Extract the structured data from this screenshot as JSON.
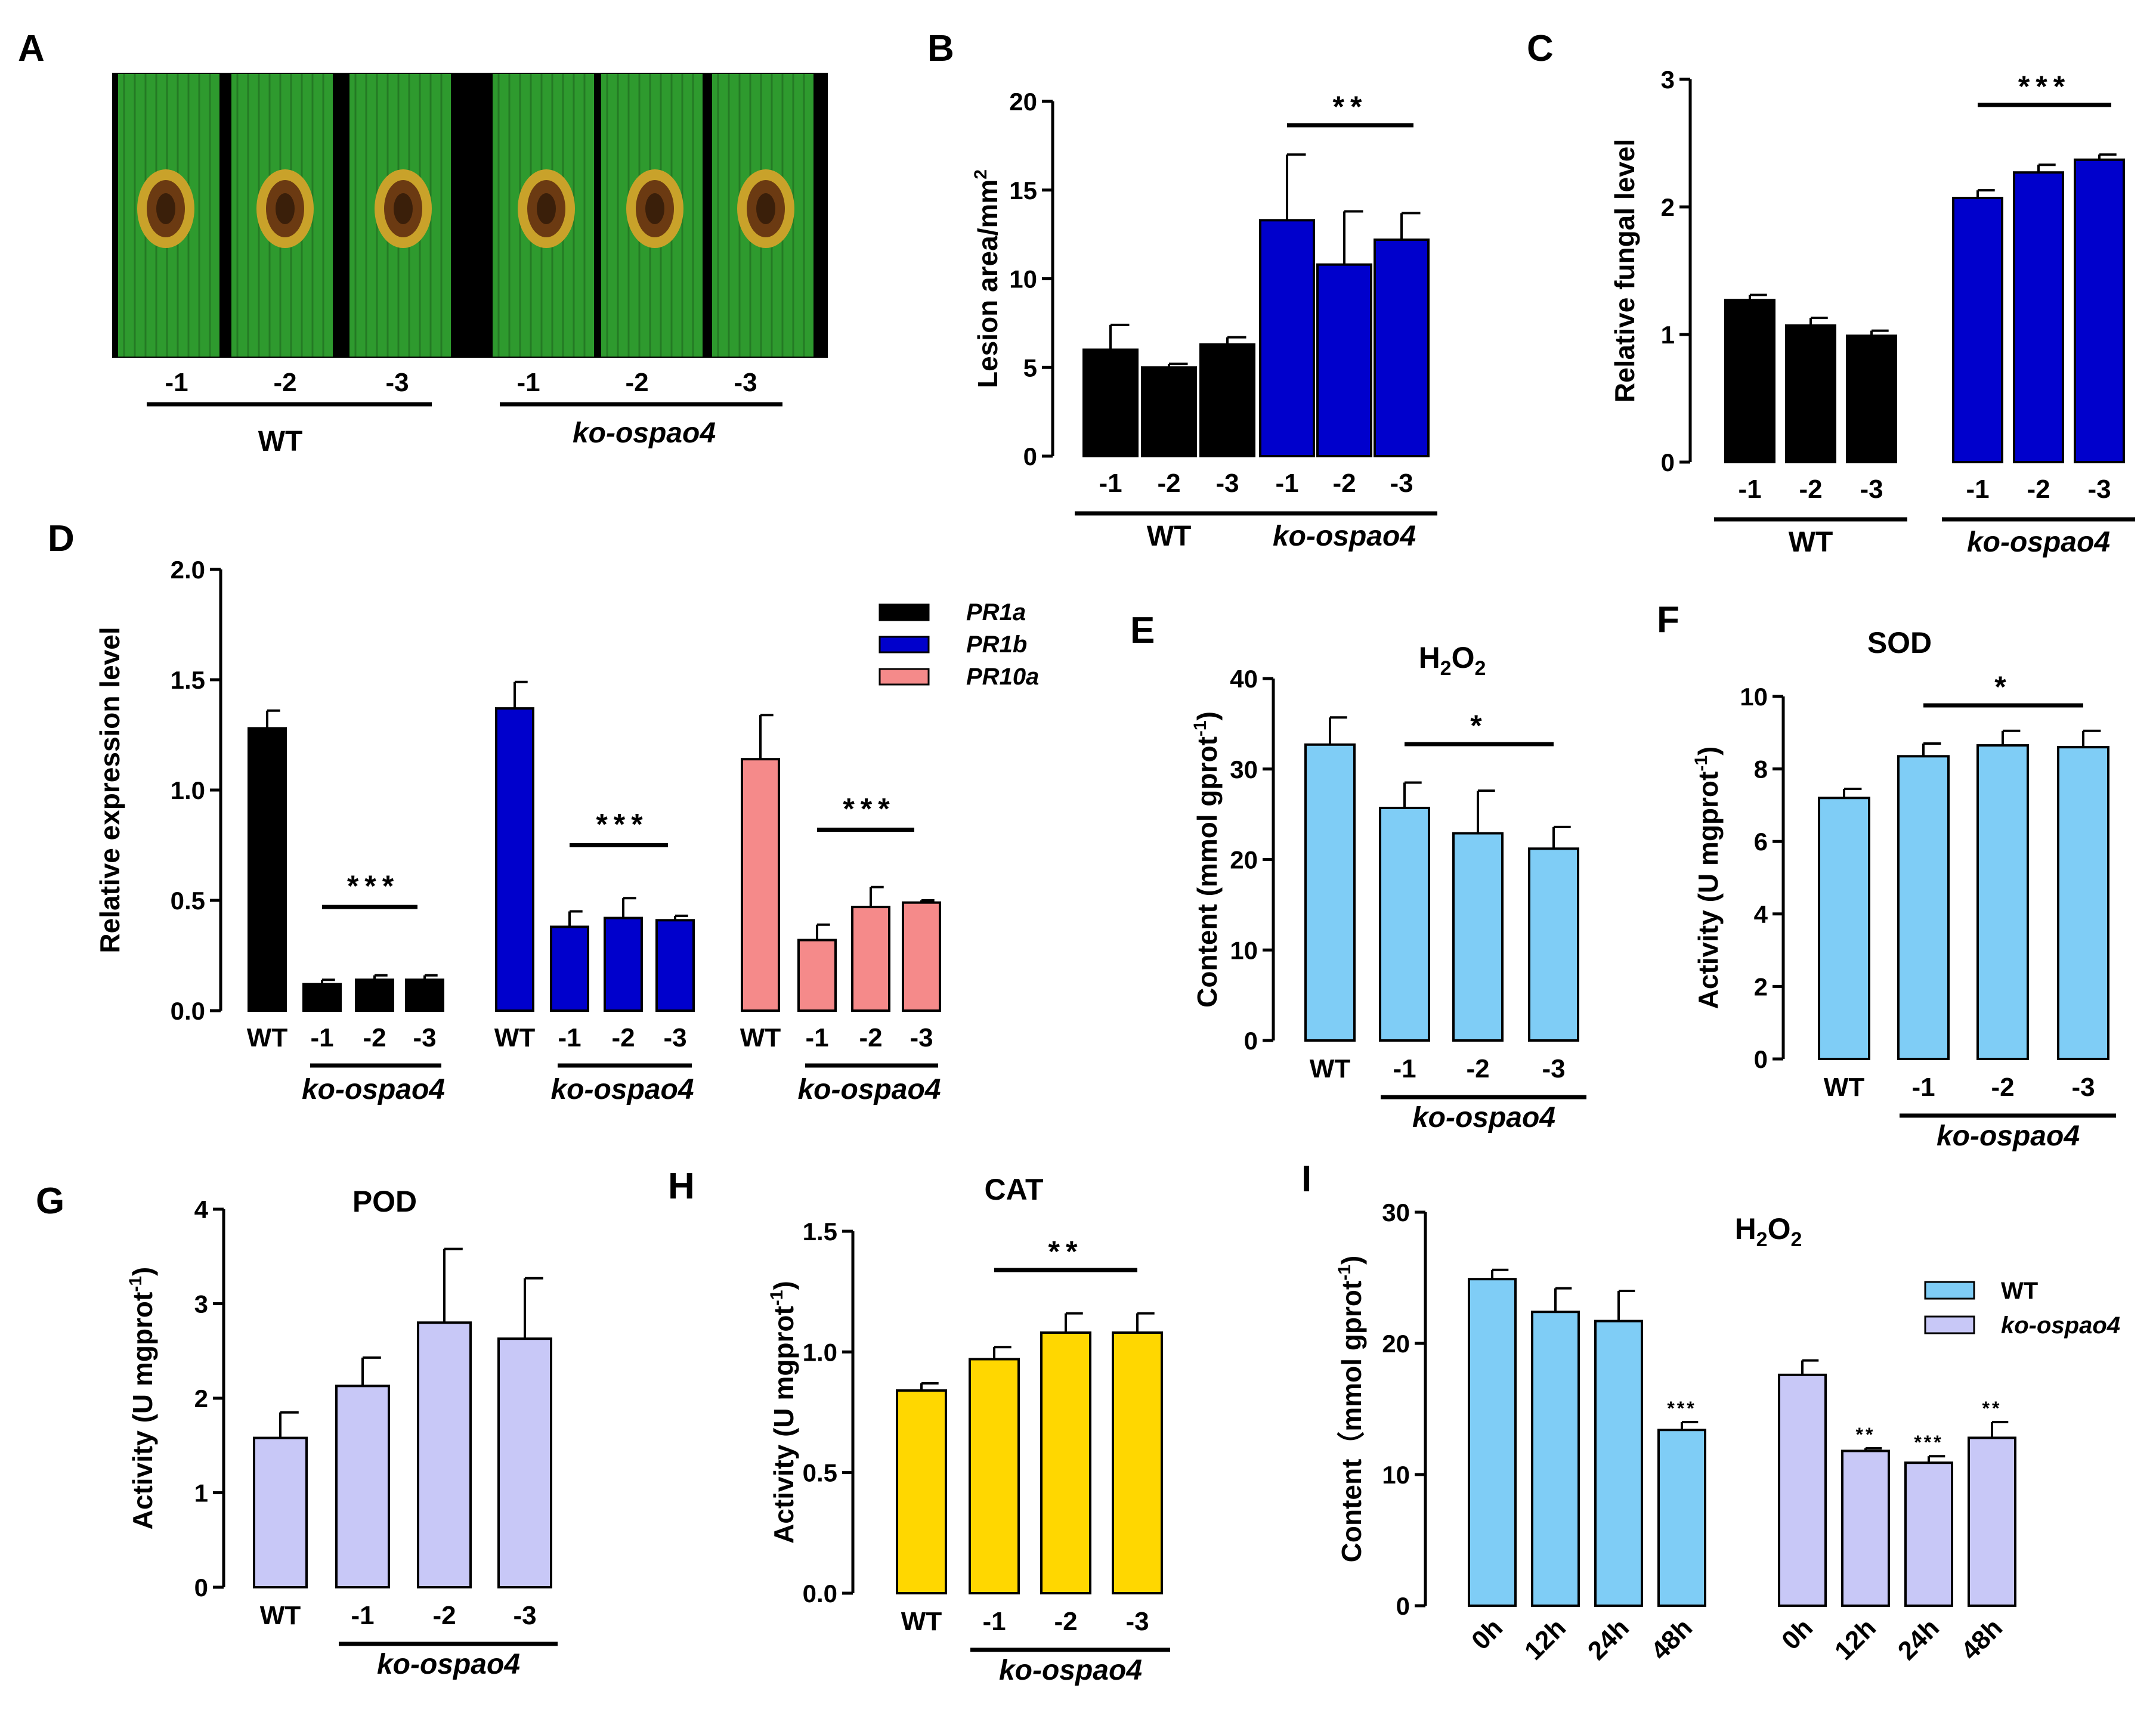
{
  "colors": {
    "black": "#000000",
    "blue": "#0000CC",
    "salmon": "#F58A8A",
    "lightblue": "#7FCDF6",
    "lavender": "#C8C8F7",
    "gold": "#FFD700",
    "leaf": "#2E9A2E"
  },
  "photo": {
    "label": "A",
    "strain_labels": [
      "-1",
      "-2",
      "-3",
      "-1",
      "-2",
      "-3"
    ],
    "groups": [
      "WT",
      "ko-ospao4"
    ]
  },
  "chart_data": [
    {
      "id": "B",
      "label": "B",
      "type": "bar",
      "title": "",
      "ylabel": "Lesion area/mm",
      "ylabel_sup": "2",
      "ylim": [
        0,
        20
      ],
      "yticks": [
        "0",
        "5",
        "10",
        "15",
        "20"
      ],
      "categories": [
        "-1",
        "-2",
        "-3",
        "-1",
        "-2",
        "-3"
      ],
      "values": [
        6.0,
        5.0,
        6.3,
        13.3,
        10.8,
        12.2
      ],
      "errors": [
        1.4,
        0.2,
        0.4,
        3.7,
        3.0,
        1.5
      ],
      "bar_colors": [
        "black",
        "black",
        "black",
        "blue",
        "blue",
        "blue"
      ],
      "groups": [
        {
          "name": "WT",
          "italic": false
        },
        {
          "name": "ko-ospao4",
          "italic": true
        }
      ],
      "significance": "**"
    },
    {
      "id": "C",
      "label": "C",
      "type": "bar",
      "title": "",
      "ylabel": "Relative fungal level",
      "ylim": [
        0,
        3
      ],
      "yticks": [
        "0",
        "1",
        "2",
        "3"
      ],
      "categories": [
        "-1",
        "-2",
        "-3",
        "-1",
        "-2",
        "-3"
      ],
      "values": [
        1.27,
        1.07,
        0.99,
        2.07,
        2.27,
        2.37
      ],
      "errors": [
        0.04,
        0.06,
        0.04,
        0.06,
        0.06,
        0.04
      ],
      "bar_colors": [
        "black",
        "black",
        "black",
        "blue",
        "blue",
        "blue"
      ],
      "groups": [
        {
          "name": "WT",
          "italic": false
        },
        {
          "name": "ko-ospao4",
          "italic": true
        }
      ],
      "significance": "***"
    },
    {
      "id": "D",
      "label": "D",
      "type": "bar",
      "title": "",
      "ylabel": "Relative expression level",
      "ylim": [
        0,
        2
      ],
      "yticks": [
        "0.0",
        "0.5",
        "1.0",
        "1.5",
        "2.0"
      ],
      "categories": [
        "WT",
        "-1",
        "-2",
        "-3"
      ],
      "series": [
        {
          "name": "PR1a",
          "values": [
            1.28,
            0.12,
            0.14,
            0.14
          ],
          "errors": [
            0.08,
            0.02,
            0.02,
            0.02
          ],
          "significance": "***"
        },
        {
          "name": "PR1b",
          "values": [
            1.37,
            0.38,
            0.42,
            0.41
          ],
          "errors": [
            0.12,
            0.07,
            0.09,
            0.02
          ],
          "significance": "***"
        },
        {
          "name": "PR10a",
          "values": [
            1.14,
            0.32,
            0.47,
            0.49
          ],
          "errors": [
            0.2,
            0.07,
            0.09,
            0.01
          ],
          "significance": "***"
        }
      ],
      "series_colors": [
        "black",
        "blue",
        "salmon"
      ],
      "group_label": "ko-ospao4"
    },
    {
      "id": "E",
      "label": "E",
      "type": "bar",
      "title": "H",
      "title_sub": "2",
      "title_rest": "O",
      "title_sub2": "2",
      "ylabel": "Content (mmol gprot",
      "ylabel_sup": "-1",
      "ylabel_end": ")",
      "ylim": [
        0,
        40
      ],
      "yticks": [
        "0",
        "10",
        "20",
        "30",
        "40"
      ],
      "categories": [
        "WT",
        "-1",
        "-2",
        "-3"
      ],
      "values": [
        32.7,
        25.7,
        22.9,
        21.2
      ],
      "errors": [
        3.0,
        2.8,
        4.7,
        2.4
      ],
      "color": "lightblue",
      "group_label": "ko-ospao4",
      "significance": "*"
    },
    {
      "id": "F",
      "label": "F",
      "type": "bar",
      "title": "SOD",
      "ylabel": "Activity (U mgprot",
      "ylabel_sup": "-1",
      "ylabel_end": ")",
      "ylim": [
        0,
        10
      ],
      "yticks": [
        "0",
        "2",
        "4",
        "6",
        "8",
        "10"
      ],
      "categories": [
        "WT",
        "-1",
        "-2",
        "-3"
      ],
      "values": [
        7.2,
        8.35,
        8.65,
        8.6
      ],
      "errors": [
        0.25,
        0.35,
        0.4,
        0.45
      ],
      "color": "lightblue",
      "group_label": "ko-ospao4",
      "significance": "*"
    },
    {
      "id": "G",
      "label": "G",
      "type": "bar",
      "title": "POD",
      "ylabel": "Activity (U mgprot",
      "ylabel_sup": "-1",
      "ylabel_end": ")",
      "ylim": [
        0,
        4
      ],
      "yticks": [
        "0",
        "1",
        "2",
        "3",
        "4"
      ],
      "categories": [
        "WT",
        "-1",
        "-2",
        "-3"
      ],
      "values": [
        1.58,
        2.13,
        2.8,
        2.63
      ],
      "errors": [
        0.27,
        0.3,
        0.78,
        0.64
      ],
      "color": "lavender",
      "group_label": "ko-ospao4",
      "significance": ""
    },
    {
      "id": "H",
      "label": "H",
      "type": "bar",
      "title": "CAT",
      "ylabel": "Activity (U mgprot",
      "ylabel_sup": "-1",
      "ylabel_end": ")",
      "ylim": [
        0,
        1.5
      ],
      "yticks": [
        "0.0",
        "0.5",
        "1.0",
        "1.5"
      ],
      "categories": [
        "WT",
        "-1",
        "-2",
        "-3"
      ],
      "values": [
        0.84,
        0.97,
        1.08,
        1.08
      ],
      "errors": [
        0.03,
        0.05,
        0.08,
        0.08
      ],
      "color": "gold",
      "group_label": "ko-ospao4",
      "significance": "**"
    },
    {
      "id": "I",
      "label": "I",
      "type": "bar",
      "title": "H",
      "title_sub": "2",
      "title_rest": "O",
      "title_sub2": "2",
      "ylabel": "Content（mmol gprot",
      "ylabel_sup": "-1",
      "ylabel_end": ")",
      "ylim": [
        0,
        30
      ],
      "yticks": [
        "0",
        "10",
        "20",
        "30"
      ],
      "categories": [
        "0h",
        "12h",
        "24h",
        "48h"
      ],
      "series": [
        {
          "name": "WT",
          "values": [
            24.9,
            22.4,
            21.7,
            13.4
          ],
          "errors": [
            0.7,
            1.8,
            2.3,
            0.6
          ],
          "marks": [
            "",
            "",
            "",
            "***"
          ]
        },
        {
          "name": "ko-ospao4",
          "values": [
            17.6,
            11.8,
            10.9,
            12.8
          ],
          "errors": [
            1.1,
            0.2,
            0.5,
            1.2
          ],
          "marks": [
            "",
            "**",
            "***",
            "**"
          ]
        }
      ],
      "series_colors": [
        "lightblue",
        "lavender"
      ]
    }
  ]
}
